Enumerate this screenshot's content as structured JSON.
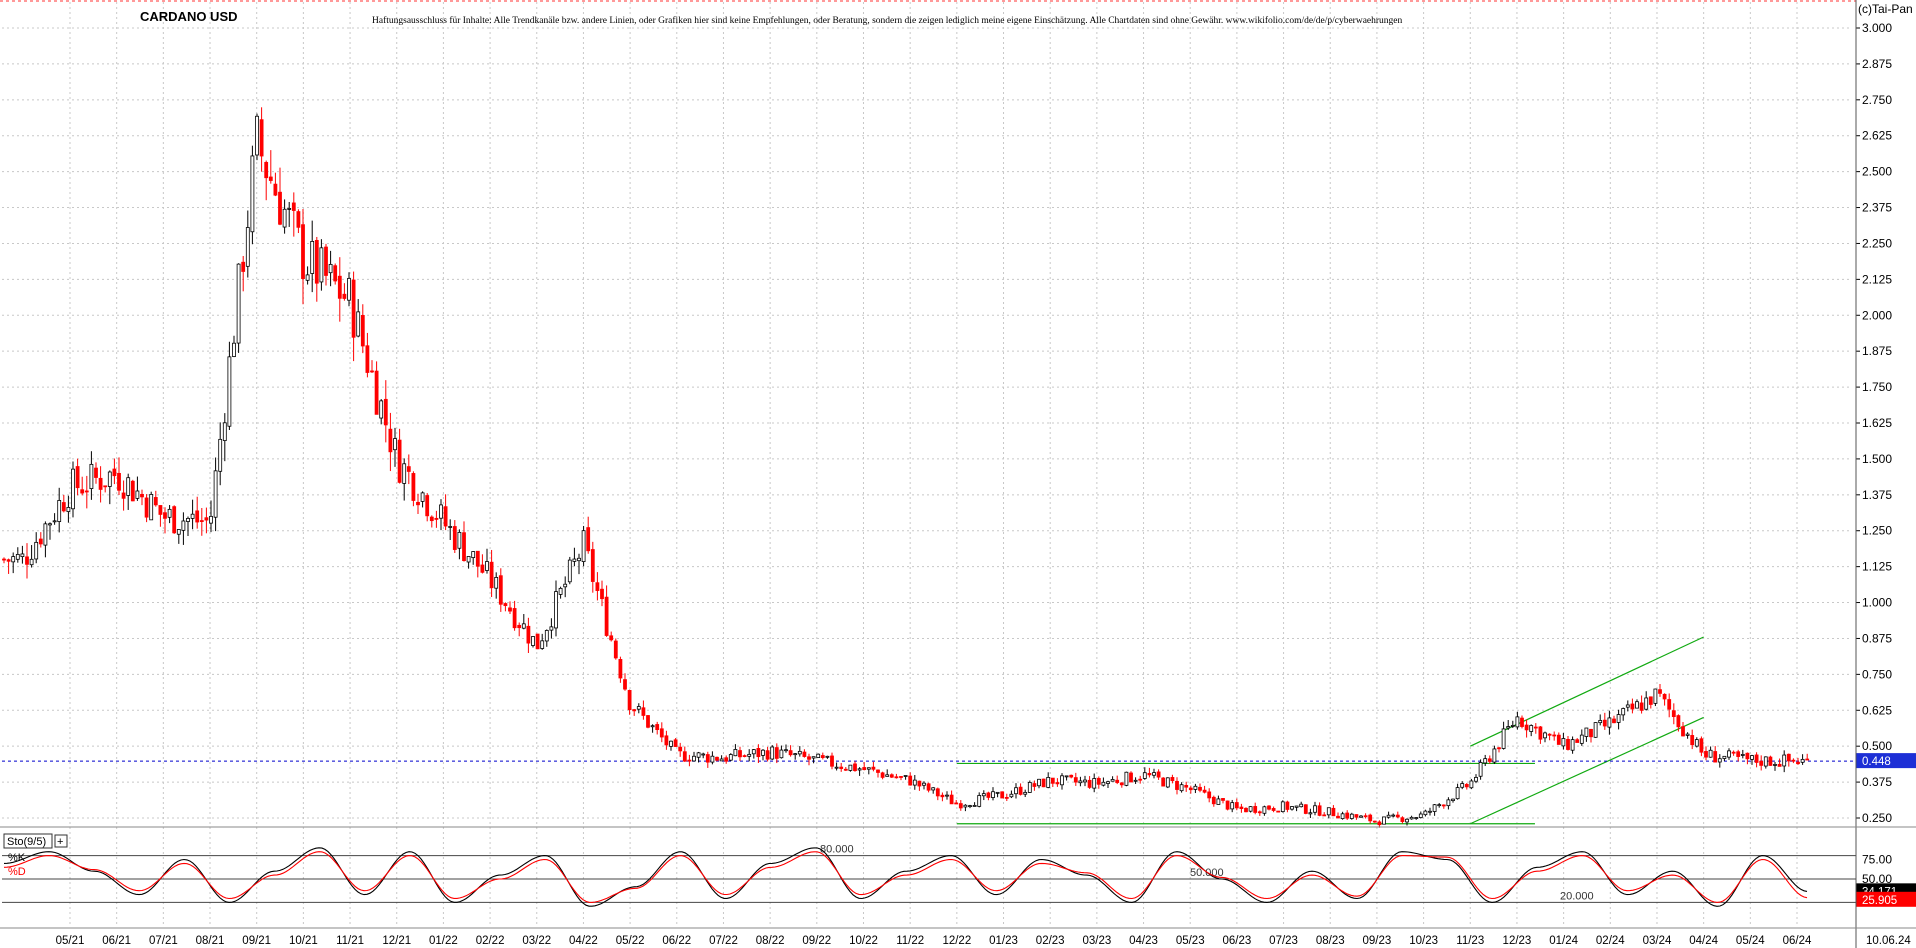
{
  "chart_data": [
    {
      "type": "candlestick",
      "title": "CARDANO USD",
      "subtitle": "Haftungsausschluss für Inhalte: Alle Trendkanäle bzw. andere Linien, oder Grafiken hier sind keine Empfehlungen, oder Beratung, sondern die zeigen lediglich meine eigene Einschätzung. Alle Chartdaten sind ohne Gewähr.  www.wikifolio.com/de/de/p/cyberwaehrungen",
      "copyright": "(c)Tai-Pan",
      "ylim": [
        0.2,
        3.1
      ],
      "yticks": [
        "3.000",
        "2.875",
        "2.750",
        "2.625",
        "2.500",
        "2.375",
        "2.250",
        "2.125",
        "2.000",
        "1.875",
        "1.750",
        "1.625",
        "1.500",
        "1.375",
        "1.250",
        "1.125",
        "1.000",
        "0.875",
        "0.750",
        "0.625",
        "0.500",
        "0.375",
        "0.250"
      ],
      "xticks": [
        "05/21",
        "06/21",
        "07/21",
        "08/21",
        "09/21",
        "10/21",
        "11/21",
        "12/21",
        "01/22",
        "02/22",
        "03/22",
        "04/22",
        "05/22",
        "06/22",
        "07/22",
        "08/22",
        "09/22",
        "10/22",
        "11/22",
        "12/22",
        "01/23",
        "02/23",
        "03/23",
        "04/23",
        "05/23",
        "06/23",
        "07/23",
        "08/23",
        "09/23",
        "10/23",
        "11/23",
        "12/23",
        "01/24",
        "02/24",
        "03/24",
        "04/24",
        "05/24",
        "06/24"
      ],
      "last_date": "10.06.24",
      "last_price": "0.448",
      "grid": true,
      "colors": {
        "up": "#000000",
        "down": "#ff0000",
        "trendline": "#11aa11",
        "price_line": "#0000cc"
      },
      "series": [
        {
          "x": [
            "04/21",
            "05/21",
            "06/21",
            "07/21",
            "08/21",
            "09/21",
            "10/21",
            "11/21",
            "12/21",
            "01/22",
            "02/22",
            "03/22",
            "04/22",
            "05/22",
            "06/22",
            "07/22",
            "08/22",
            "09/22",
            "10/22",
            "11/22",
            "12/22",
            "01/23",
            "02/23",
            "03/23",
            "04/23",
            "05/23",
            "06/23",
            "07/23",
            "08/23",
            "09/23",
            "10/23",
            "11/23",
            "12/23",
            "01/24",
            "02/24",
            "03/24",
            "04/24",
            "05/24",
            "06/24"
          ],
          "values": [
            1.15,
            1.4,
            1.45,
            1.3,
            1.28,
            2.6,
            2.2,
            2.05,
            1.5,
            1.28,
            1.08,
            0.85,
            1.2,
            0.65,
            0.47,
            0.46,
            0.48,
            0.45,
            0.42,
            0.38,
            0.3,
            0.33,
            0.38,
            0.37,
            0.4,
            0.35,
            0.28,
            0.29,
            0.27,
            0.24,
            0.26,
            0.37,
            0.6,
            0.5,
            0.58,
            0.68,
            0.47,
            0.45,
            0.448
          ]
        }
      ],
      "trendlines": [
        {
          "from": [
            "12/22",
            0.44
          ],
          "to": [
            "12/23",
            0.44
          ]
        },
        {
          "from": [
            "12/22",
            0.23
          ],
          "to": [
            "12/23",
            0.23
          ]
        },
        {
          "from": [
            "11/23",
            0.5
          ],
          "to": [
            "04/24",
            0.88
          ]
        },
        {
          "from": [
            "11/23",
            0.23
          ],
          "to": [
            "04/24",
            0.6
          ]
        }
      ]
    },
    {
      "type": "line",
      "title": "Sto(9/5)",
      "legend": [
        "%K",
        "%D"
      ],
      "levels": [
        "80.000",
        "50.000",
        "20.000"
      ],
      "yticks": [
        "75.00",
        "50.00",
        "25.00"
      ],
      "last_k": "34.171",
      "last_d": "25.905",
      "series": [
        {
          "name": "%K",
          "color": "#000000",
          "values": [
            70,
            85,
            60,
            30,
            75,
            20,
            60,
            90,
            30,
            85,
            20,
            55,
            80,
            15,
            40,
            85,
            25,
            70,
            90,
            25,
            60,
            80,
            30,
            75,
            55,
            20,
            85,
            50,
            20,
            60,
            25,
            85,
            75,
            20,
            65,
            85,
            30,
            60,
            15,
            80,
            34
          ]
        },
        {
          "name": "%D",
          "color": "#ff0000",
          "values": [
            65,
            80,
            62,
            35,
            70,
            25,
            55,
            85,
            35,
            80,
            25,
            50,
            75,
            20,
            38,
            80,
            30,
            65,
            85,
            30,
            55,
            75,
            35,
            70,
            58,
            25,
            80,
            52,
            25,
            55,
            28,
            80,
            78,
            25,
            60,
            80,
            35,
            55,
            20,
            75,
            26
          ]
        }
      ]
    }
  ]
}
